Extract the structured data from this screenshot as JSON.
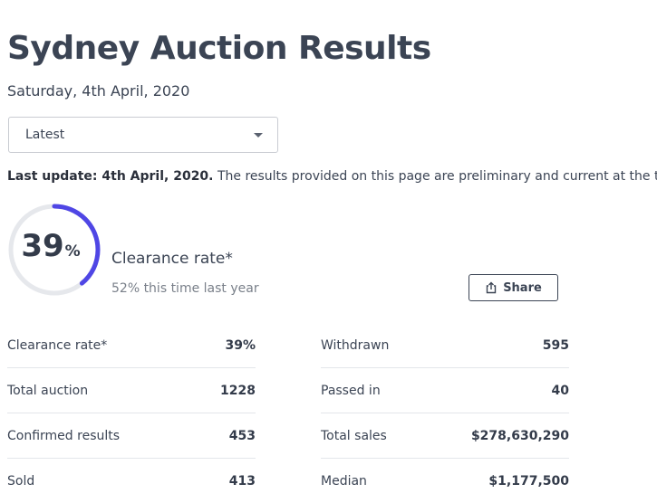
{
  "header": {
    "title": "Sydney Auction Results",
    "date": "Saturday, 4th April, 2020"
  },
  "filter": {
    "selected": "Latest"
  },
  "notice": {
    "bold": "Last update: 4th April, 2020.",
    "text": " The results provided on this page are preliminary and current at the time of"
  },
  "clearance": {
    "value": "39",
    "unit": "%",
    "fraction": 0.39,
    "label": "Clearance rate*",
    "last_year": "52% this time last year",
    "accent_color": "#4f46e5",
    "track_color": "#e6e8ec"
  },
  "share": {
    "label": "Share"
  },
  "stats_left": [
    {
      "label": "Clearance rate*",
      "value": "39%"
    },
    {
      "label": "Total auction",
      "value": "1228"
    },
    {
      "label": "Confirmed results",
      "value": "453"
    },
    {
      "label": "Sold",
      "value": "413"
    }
  ],
  "stats_right": [
    {
      "label": "Withdrawn",
      "value": "595"
    },
    {
      "label": "Passed in",
      "value": "40"
    },
    {
      "label": "Total sales",
      "value": "$278,630,290"
    },
    {
      "label": "Median",
      "value": "$1,177,500"
    }
  ]
}
